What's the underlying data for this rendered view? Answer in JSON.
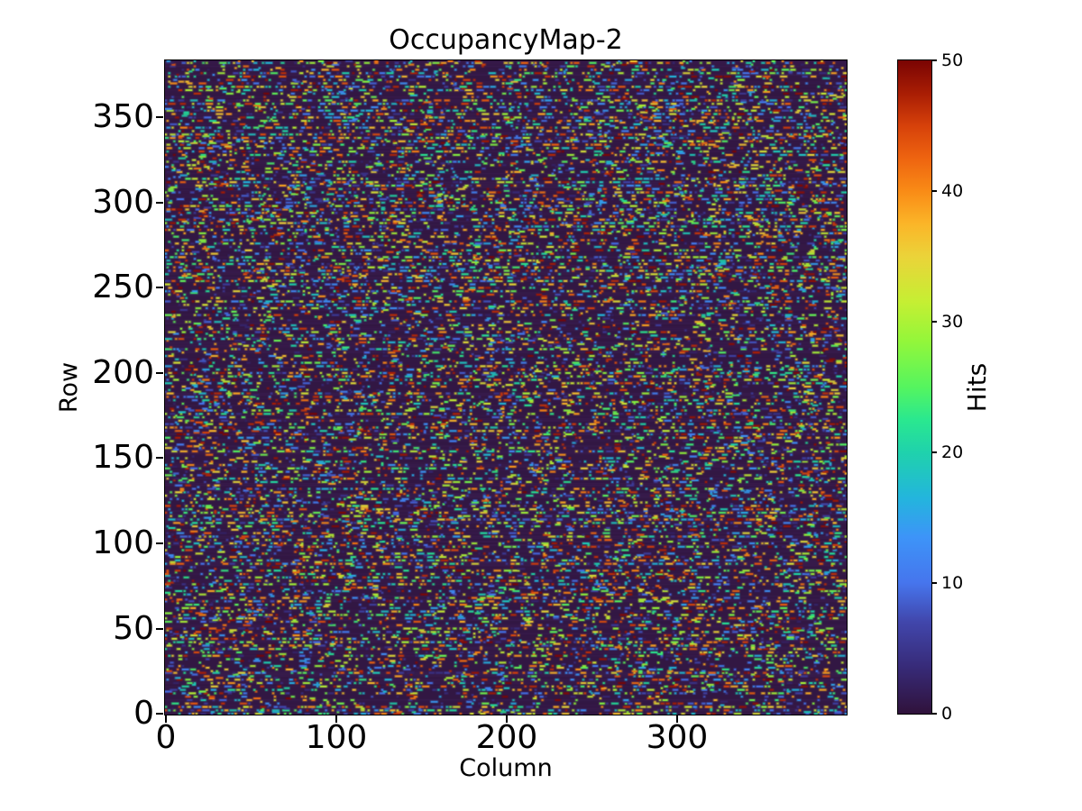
{
  "chart_data": {
    "type": "heatmap",
    "title": "OccupancyMap-2",
    "xlabel": "Column",
    "ylabel": "Row",
    "colorbar_label": "Hits",
    "n_cols": 400,
    "n_rows": 384,
    "xlim": [
      0,
      400
    ],
    "ylim": [
      0,
      384
    ],
    "xticks": [
      0,
      100,
      200,
      300
    ],
    "yticks": [
      0,
      50,
      100,
      150,
      200,
      250,
      300,
      350
    ],
    "colorbar_ticks": [
      0,
      10,
      20,
      30,
      40,
      50
    ],
    "vmin": 0,
    "vmax": 50,
    "colormap": "turbo",
    "colormap_stops": [
      [
        0.0,
        "#30123b"
      ],
      [
        0.07,
        "#372a77"
      ],
      [
        0.14,
        "#4146ab"
      ],
      [
        0.2,
        "#4675ed"
      ],
      [
        0.27,
        "#3d94f8"
      ],
      [
        0.33,
        "#23b5dd"
      ],
      [
        0.4,
        "#1fd2ac"
      ],
      [
        0.45,
        "#2ae88f"
      ],
      [
        0.5,
        "#55f55f"
      ],
      [
        0.57,
        "#93f63a"
      ],
      [
        0.63,
        "#c5ef33"
      ],
      [
        0.7,
        "#ebd339"
      ],
      [
        0.75,
        "#fbb528"
      ],
      [
        0.8,
        "#f98b16"
      ],
      [
        0.85,
        "#ee6410"
      ],
      [
        0.9,
        "#d6410a"
      ],
      [
        0.95,
        "#a81d04"
      ],
      [
        1.0,
        "#7a0403"
      ]
    ],
    "plot_background_color": "#321743",
    "pattern": {
      "description": "Sparse random hit clusters (dashes of 1-4 adjacent columns) on a near-zero dark background; dense rows alternate with sparse rows; hit values span the full 0-50 range uniformly.",
      "dense_row_run_probability": 0.3,
      "sparse_row_run_probability": 0.04,
      "run_length_max": 4,
      "hit_value_range": [
        2,
        50
      ],
      "background_value": 0,
      "seed": 1337
    }
  }
}
